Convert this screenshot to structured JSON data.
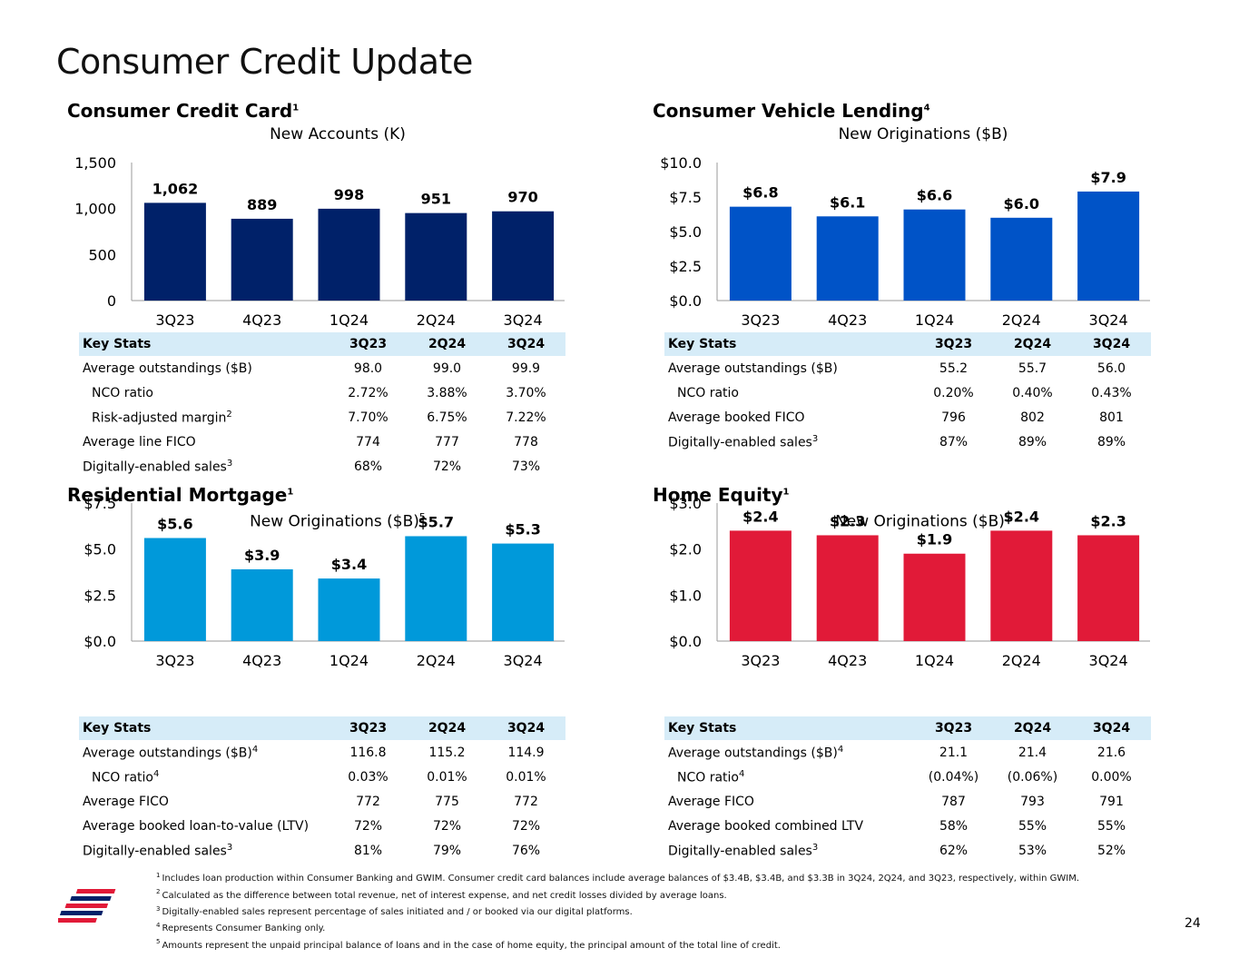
{
  "page": {
    "title": "Consumer Credit Update",
    "page_number": "24"
  },
  "colors": {
    "navy": "#002169",
    "royal": "#0053c7",
    "sky": "#0099da",
    "red": "#e11a38",
    "table_header": "#d6ecf8"
  },
  "panels": [
    {
      "title": "Consumer Credit Card",
      "title_sup": "1",
      "stats": {
        "header": [
          "Key Stats",
          "3Q23",
          "2Q24",
          "3Q24"
        ],
        "rows": [
          {
            "label": "Average outstandings ($B)",
            "sup": "",
            "indent": false,
            "values": [
              "98.0",
              "99.0",
              "99.9"
            ]
          },
          {
            "label": "NCO ratio",
            "sup": "",
            "indent": true,
            "values": [
              "2.72%",
              "3.88%",
              "3.70%"
            ]
          },
          {
            "label": "Risk-adjusted margin",
            "sup": "2",
            "indent": true,
            "values": [
              "7.70%",
              "6.75%",
              "7.22%"
            ]
          },
          {
            "label": "Average line FICO",
            "sup": "",
            "indent": false,
            "values": [
              "774",
              "777",
              "778"
            ]
          },
          {
            "label": "Digitally-enabled sales",
            "sup": "3",
            "indent": false,
            "values": [
              "68%",
              "72%",
              "73%"
            ]
          }
        ]
      }
    },
    {
      "title": "Consumer Vehicle Lending",
      "title_sup": "4",
      "stats": {
        "header": [
          "Key Stats",
          "3Q23",
          "2Q24",
          "3Q24"
        ],
        "rows": [
          {
            "label": "Average outstandings ($B)",
            "sup": "",
            "indent": false,
            "values": [
              "55.2",
              "55.7",
              "56.0"
            ]
          },
          {
            "label": "NCO ratio",
            "sup": "",
            "indent": true,
            "values": [
              "0.20%",
              "0.40%",
              "0.43%"
            ]
          },
          {
            "label": "Average booked FICO",
            "sup": "",
            "indent": false,
            "values": [
              "796",
              "802",
              "801"
            ]
          },
          {
            "label": "Digitally-enabled sales",
            "sup": "3",
            "indent": false,
            "values": [
              "87%",
              "89%",
              "89%"
            ]
          }
        ]
      }
    },
    {
      "title": "Residential Mortgage",
      "title_sup": "1",
      "stats": {
        "header": [
          "Key Stats",
          "3Q23",
          "2Q24",
          "3Q24"
        ],
        "rows": [
          {
            "label": "Average outstandings ($B)",
            "sup": "4",
            "indent": false,
            "values": [
              "116.8",
              "115.2",
              "114.9"
            ]
          },
          {
            "label": "NCO ratio",
            "sup": "4",
            "indent": true,
            "values": [
              "0.03%",
              "0.01%",
              "0.01%"
            ]
          },
          {
            "label": "Average FICO",
            "sup": "",
            "indent": false,
            "values": [
              "772",
              "775",
              "772"
            ]
          },
          {
            "label": "Average booked loan-to-value (LTV)",
            "sup": "",
            "indent": false,
            "values": [
              "72%",
              "72%",
              "72%"
            ]
          },
          {
            "label": "Digitally-enabled sales",
            "sup": "3",
            "indent": false,
            "values": [
              "81%",
              "79%",
              "76%"
            ]
          }
        ]
      }
    },
    {
      "title": "Home Equity",
      "title_sup": "1",
      "stats": {
        "header": [
          "Key Stats",
          "3Q23",
          "2Q24",
          "3Q24"
        ],
        "rows": [
          {
            "label": "Average outstandings ($B)",
            "sup": "4",
            "indent": false,
            "values": [
              "21.1",
              "21.4",
              "21.6"
            ]
          },
          {
            "label": "NCO ratio",
            "sup": "4",
            "indent": true,
            "values": [
              "(0.04%)",
              "(0.06%)",
              "0.00%"
            ]
          },
          {
            "label": "Average FICO",
            "sup": "",
            "indent": false,
            "values": [
              "787",
              "793",
              "791"
            ]
          },
          {
            "label": "Average booked combined LTV",
            "sup": "",
            "indent": false,
            "values": [
              "58%",
              "55%",
              "55%"
            ]
          },
          {
            "label": "Digitally-enabled sales",
            "sup": "3",
            "indent": false,
            "values": [
              "62%",
              "53%",
              "52%"
            ]
          }
        ]
      }
    }
  ],
  "chart_data": [
    {
      "type": "bar",
      "title": "New Accounts (K)",
      "title_sup": "",
      "categories": [
        "3Q23",
        "4Q23",
        "1Q24",
        "2Q24",
        "3Q24"
      ],
      "values": [
        1062,
        889,
        998,
        951,
        970
      ],
      "labels": [
        "1,062",
        "889",
        "998",
        "951",
        "970"
      ],
      "yticks": [
        0,
        500,
        1000,
        1500
      ],
      "ytick_labels": [
        "0",
        "500",
        "1,000",
        "1,500"
      ],
      "ylim": [
        0,
        1500
      ],
      "color": "#002169"
    },
    {
      "type": "bar",
      "title": "New Originations ($B)",
      "title_sup": "",
      "categories": [
        "3Q23",
        "4Q23",
        "1Q24",
        "2Q24",
        "3Q24"
      ],
      "values": [
        6.8,
        6.1,
        6.6,
        6.0,
        7.9
      ],
      "labels": [
        "$6.8",
        "$6.1",
        "$6.6",
        "$6.0",
        "$7.9"
      ],
      "yticks": [
        0,
        2.5,
        5,
        7.5,
        10
      ],
      "ytick_labels": [
        "$0.0",
        "$2.5",
        "$5.0",
        "$7.5",
        "$10.0"
      ],
      "ylim": [
        0,
        10
      ],
      "color": "#0053c7"
    },
    {
      "type": "bar",
      "title": "New Originations ($B)",
      "title_sup": "5",
      "categories": [
        "3Q23",
        "4Q23",
        "1Q24",
        "2Q24",
        "3Q24"
      ],
      "values": [
        5.6,
        3.9,
        3.4,
        5.7,
        5.3
      ],
      "labels": [
        "$5.6",
        "$3.9",
        "$3.4",
        "$5.7",
        "$5.3"
      ],
      "yticks": [
        0,
        2.5,
        5,
        7.5
      ],
      "ytick_labels": [
        "$0.0",
        "$2.5",
        "$5.0",
        "$7.5"
      ],
      "ylim": [
        0,
        7.5
      ],
      "color": "#0099da"
    },
    {
      "type": "bar",
      "title": "New Originations ($B)",
      "title_sup": "5",
      "categories": [
        "3Q23",
        "4Q23",
        "1Q24",
        "2Q24",
        "3Q24"
      ],
      "values": [
        2.4,
        2.3,
        1.9,
        2.4,
        2.3
      ],
      "labels": [
        "$2.4",
        "$2.3",
        "$1.9",
        "$2.4",
        "$2.3"
      ],
      "yticks": [
        0,
        1,
        2,
        3
      ],
      "ytick_labels": [
        "$0.0",
        "$1.0",
        "$2.0",
        "$3.0"
      ],
      "ylim": [
        0,
        3
      ],
      "color": "#e11a38"
    }
  ],
  "footnotes": [
    {
      "num": "1",
      "text": "Includes loan production within Consumer Banking and GWIM. Consumer credit card balances include average balances of $3.4B, $3.4B, and $3.3B in 3Q24, 2Q24, and 3Q23, respectively, within GWIM."
    },
    {
      "num": "2",
      "text": "Calculated as the difference between total revenue, net of interest expense, and net credit losses divided by average loans."
    },
    {
      "num": "3",
      "text": "Digitally-enabled sales represent percentage of sales initiated and / or booked via our digital platforms."
    },
    {
      "num": "4",
      "text": "Represents Consumer Banking only."
    },
    {
      "num": "5",
      "text": "Amounts represent the unpaid principal balance of loans and in the case of home equity, the principal amount of the total line of credit."
    }
  ]
}
